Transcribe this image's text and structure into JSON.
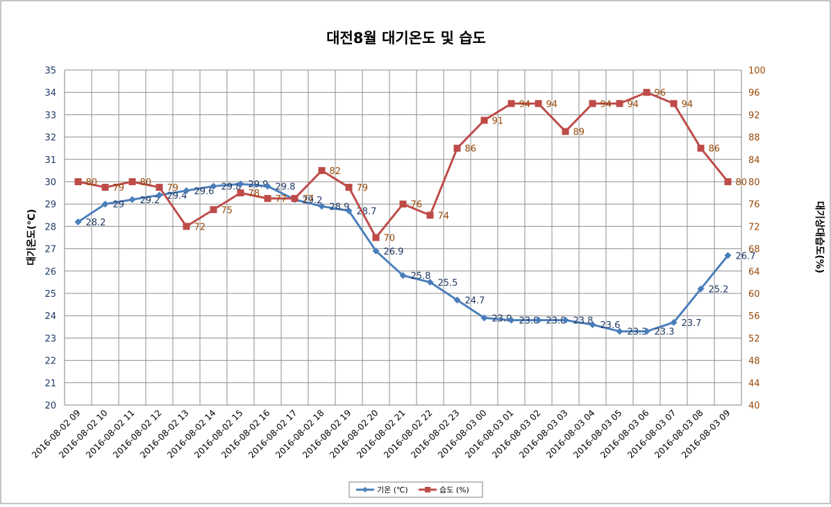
{
  "chart_data": {
    "type": "line",
    "title": "대전8월 대기온도 및 습도",
    "ylabel": "대기온도(℃)",
    "y2label": "대기상대습도(%)",
    "ylim": [
      20,
      35
    ],
    "y2lim": [
      40,
      100
    ],
    "yticks": [
      "20",
      "21",
      "22",
      "23",
      "24",
      "25",
      "26",
      "27",
      "28",
      "29",
      "30",
      "31",
      "32",
      "33",
      "34",
      "35"
    ],
    "y2ticks": [
      "40",
      "44",
      "48",
      "52",
      "56",
      "60",
      "64",
      "68",
      "72",
      "76",
      "80",
      "84",
      "88",
      "92",
      "96",
      "100"
    ],
    "grid": true,
    "legend_position": "bottom",
    "categories": [
      "2016-08-02 09",
      "2016-08-02 10",
      "2016-08-02 11",
      "2016-08-02 12",
      "2016-08-02 13",
      "2016-08-02 14",
      "2016-08-02 15",
      "2016-08-02 16",
      "2016-08-02 17",
      "2016-08-02 18",
      "2016-08-02 19",
      "2016-08-02 20",
      "2016-08-02 21",
      "2016-08-02 22",
      "2016-08-02 23",
      "2016-08-03 00",
      "2016-08-03 01",
      "2016-08-03 02",
      "2016-08-03 03",
      "2016-08-03 04",
      "2016-08-03 05",
      "2016-08-03 06",
      "2016-08-03 07",
      "2016-08-03 08",
      "2016-08-03 09"
    ],
    "series": [
      {
        "name": "기온 (℃)",
        "axis": "left",
        "color": "#4a7ebb",
        "marker": "diamond",
        "values": [
          28.2,
          29,
          29.2,
          29.4,
          29.6,
          29.8,
          29.9,
          29.8,
          29.2,
          28.9,
          28.7,
          26.9,
          25.8,
          25.5,
          24.7,
          23.9,
          23.8,
          23.8,
          23.8,
          23.6,
          23.3,
          23.3,
          23.7,
          25.2,
          26.7
        ],
        "labels": [
          "28.2",
          "29",
          "29.2",
          "29.4",
          "29.6",
          "29.8",
          "29.9",
          "29.8",
          "29.2",
          "28.9",
          "28.7",
          "26.9",
          "25.8",
          "25.5",
          "24.7",
          "23.9",
          "23.8",
          "23.8",
          "23.8",
          "23.6",
          "23.3",
          "23.3",
          "23.7",
          "25.2",
          "26.7"
        ]
      },
      {
        "name": "습도 (%)",
        "axis": "right",
        "color": "#be4b48",
        "marker": "square",
        "values": [
          80,
          79,
          80,
          79,
          72,
          75,
          78,
          77,
          77,
          82,
          79,
          70,
          76,
          74,
          86,
          91,
          94,
          94,
          89,
          94,
          94,
          96,
          94,
          86,
          80
        ],
        "labels": [
          "80",
          "79",
          "80",
          "79",
          "72",
          "75",
          "78",
          "77",
          "77",
          "82",
          "79",
          "70",
          "76",
          "74",
          "86",
          "91",
          "94",
          "94",
          "89",
          "94",
          "94",
          "96",
          "94",
          "86",
          "80"
        ]
      }
    ],
    "colors": {
      "left_axis_text": "#1f3864",
      "right_axis_text": "#984807",
      "label_temp": "#1f3864",
      "label_humid": "#984807"
    }
  }
}
